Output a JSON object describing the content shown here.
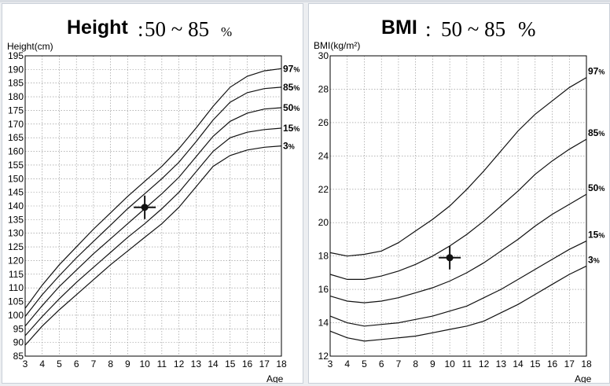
{
  "chart_data": [
    {
      "type": "line",
      "title": "Height",
      "title_sep": ":",
      "title_range": "50 ~ 85",
      "title_pct": "%",
      "ylabel": "Height(cm)",
      "xlabel": "Age",
      "xlim": [
        3,
        18
      ],
      "ylim": [
        85,
        195
      ],
      "x_ticks": [
        3,
        4,
        5,
        6,
        7,
        8,
        9,
        10,
        11,
        12,
        13,
        14,
        15,
        16,
        17,
        18
      ],
      "y_ticks": [
        85,
        90,
        95,
        100,
        105,
        110,
        115,
        120,
        125,
        130,
        135,
        140,
        145,
        150,
        155,
        160,
        165,
        170,
        175,
        180,
        185,
        190,
        195
      ],
      "grid": true,
      "series": [
        {
          "name": "97",
          "label_pct": "%",
          "x": [
            3,
            4,
            5,
            6,
            7,
            8,
            9,
            10,
            11,
            12,
            13,
            14,
            15,
            16,
            17,
            18
          ],
          "values": [
            102.5,
            111,
            118.5,
            125,
            131.5,
            137.5,
            143.5,
            149,
            154.5,
            161,
            168.5,
            176.5,
            183.5,
            187.5,
            189.5,
            190.3
          ]
        },
        {
          "name": "85",
          "label_pct": "%",
          "x": [
            3,
            4,
            5,
            6,
            7,
            8,
            9,
            10,
            11,
            12,
            13,
            14,
            15,
            16,
            17,
            18
          ],
          "values": [
            99.5,
            107.5,
            114.5,
            121,
            127,
            133,
            139,
            144.5,
            150,
            156,
            163.5,
            171.5,
            178,
            181.5,
            183,
            183.5
          ]
        },
        {
          "name": "50",
          "label_pct": "%",
          "x": [
            3,
            4,
            5,
            6,
            7,
            8,
            9,
            10,
            11,
            12,
            13,
            14,
            15,
            16,
            17,
            18
          ],
          "values": [
            96,
            103.5,
            110.5,
            116.5,
            122.5,
            128,
            133.5,
            139,
            144.5,
            150.5,
            158,
            165.5,
            171,
            174,
            175.5,
            176
          ]
        },
        {
          "name": "15",
          "label_pct": "%",
          "x": [
            3,
            4,
            5,
            6,
            7,
            8,
            9,
            10,
            11,
            12,
            13,
            14,
            15,
            16,
            17,
            18
          ],
          "values": [
            92.5,
            99.5,
            106,
            112,
            117.5,
            123,
            128.5,
            133.5,
            139,
            145,
            152.5,
            160,
            165,
            167,
            168,
            168.5
          ]
        },
        {
          "name": "3",
          "label_pct": "%",
          "x": [
            3,
            4,
            5,
            6,
            7,
            8,
            9,
            10,
            11,
            12,
            13,
            14,
            15,
            16,
            17,
            18
          ],
          "values": [
            89,
            96,
            102,
            107.5,
            113,
            118.5,
            123.5,
            128.5,
            133.5,
            139.5,
            147,
            154.5,
            158.5,
            160.5,
            161.5,
            162
          ]
        }
      ],
      "marker": {
        "x": 10,
        "y": 139.5
      }
    },
    {
      "type": "line",
      "title": "BMI",
      "title_sep": ":",
      "title_range": "50 ~ 85",
      "title_pct": "%",
      "ylabel": "BMI(kg/m²)",
      "xlabel": "Age",
      "xlim": [
        3,
        18
      ],
      "ylim": [
        12,
        30
      ],
      "x_ticks": [
        3,
        4,
        5,
        6,
        7,
        8,
        9,
        10,
        11,
        12,
        13,
        14,
        15,
        16,
        17,
        18
      ],
      "y_ticks": [
        12,
        14,
        16,
        18,
        20,
        22,
        24,
        26,
        28,
        30
      ],
      "grid": true,
      "series": [
        {
          "name": "97",
          "label_pct": "%",
          "x": [
            3,
            4,
            5,
            6,
            7,
            8,
            9,
            10,
            11,
            12,
            13,
            14,
            15,
            16,
            17,
            18
          ],
          "values": [
            18.2,
            18.0,
            18.1,
            18.3,
            18.8,
            19.5,
            20.2,
            21.0,
            22.0,
            23.1,
            24.3,
            25.5,
            26.5,
            27.3,
            28.1,
            28.7
          ]
        },
        {
          "name": "85",
          "label_pct": "%",
          "x": [
            3,
            4,
            5,
            6,
            7,
            8,
            9,
            10,
            11,
            12,
            13,
            14,
            15,
            16,
            17,
            18
          ],
          "values": [
            16.9,
            16.6,
            16.6,
            16.8,
            17.1,
            17.5,
            18.0,
            18.6,
            19.3,
            20.1,
            21.0,
            21.9,
            22.9,
            23.7,
            24.4,
            25.0
          ]
        },
        {
          "name": "50",
          "label_pct": "%",
          "x": [
            3,
            4,
            5,
            6,
            7,
            8,
            9,
            10,
            11,
            12,
            13,
            14,
            15,
            16,
            17,
            18
          ],
          "values": [
            15.6,
            15.3,
            15.2,
            15.3,
            15.5,
            15.8,
            16.1,
            16.5,
            17.0,
            17.6,
            18.3,
            19.0,
            19.8,
            20.5,
            21.1,
            21.7
          ]
        },
        {
          "name": "15",
          "label_pct": "%",
          "x": [
            3,
            4,
            5,
            6,
            7,
            8,
            9,
            10,
            11,
            12,
            13,
            14,
            15,
            16,
            17,
            18
          ],
          "values": [
            14.4,
            14.0,
            13.8,
            13.9,
            14.0,
            14.2,
            14.4,
            14.7,
            15.0,
            15.5,
            16.0,
            16.6,
            17.2,
            17.8,
            18.4,
            18.9
          ]
        },
        {
          "name": "3",
          "label_pct": "%",
          "x": [
            3,
            4,
            5,
            6,
            7,
            8,
            9,
            10,
            11,
            12,
            13,
            14,
            15,
            16,
            17,
            18
          ],
          "values": [
            13.5,
            13.1,
            12.9,
            13.0,
            13.1,
            13.2,
            13.4,
            13.6,
            13.8,
            14.1,
            14.6,
            15.1,
            15.7,
            16.3,
            16.9,
            17.4
          ]
        }
      ],
      "marker": {
        "x": 10,
        "y": 17.9
      }
    }
  ],
  "colors": {
    "line": "#111111",
    "grid": "#8a8a8a",
    "background": "#ffffff",
    "page": "#eceef1"
  }
}
